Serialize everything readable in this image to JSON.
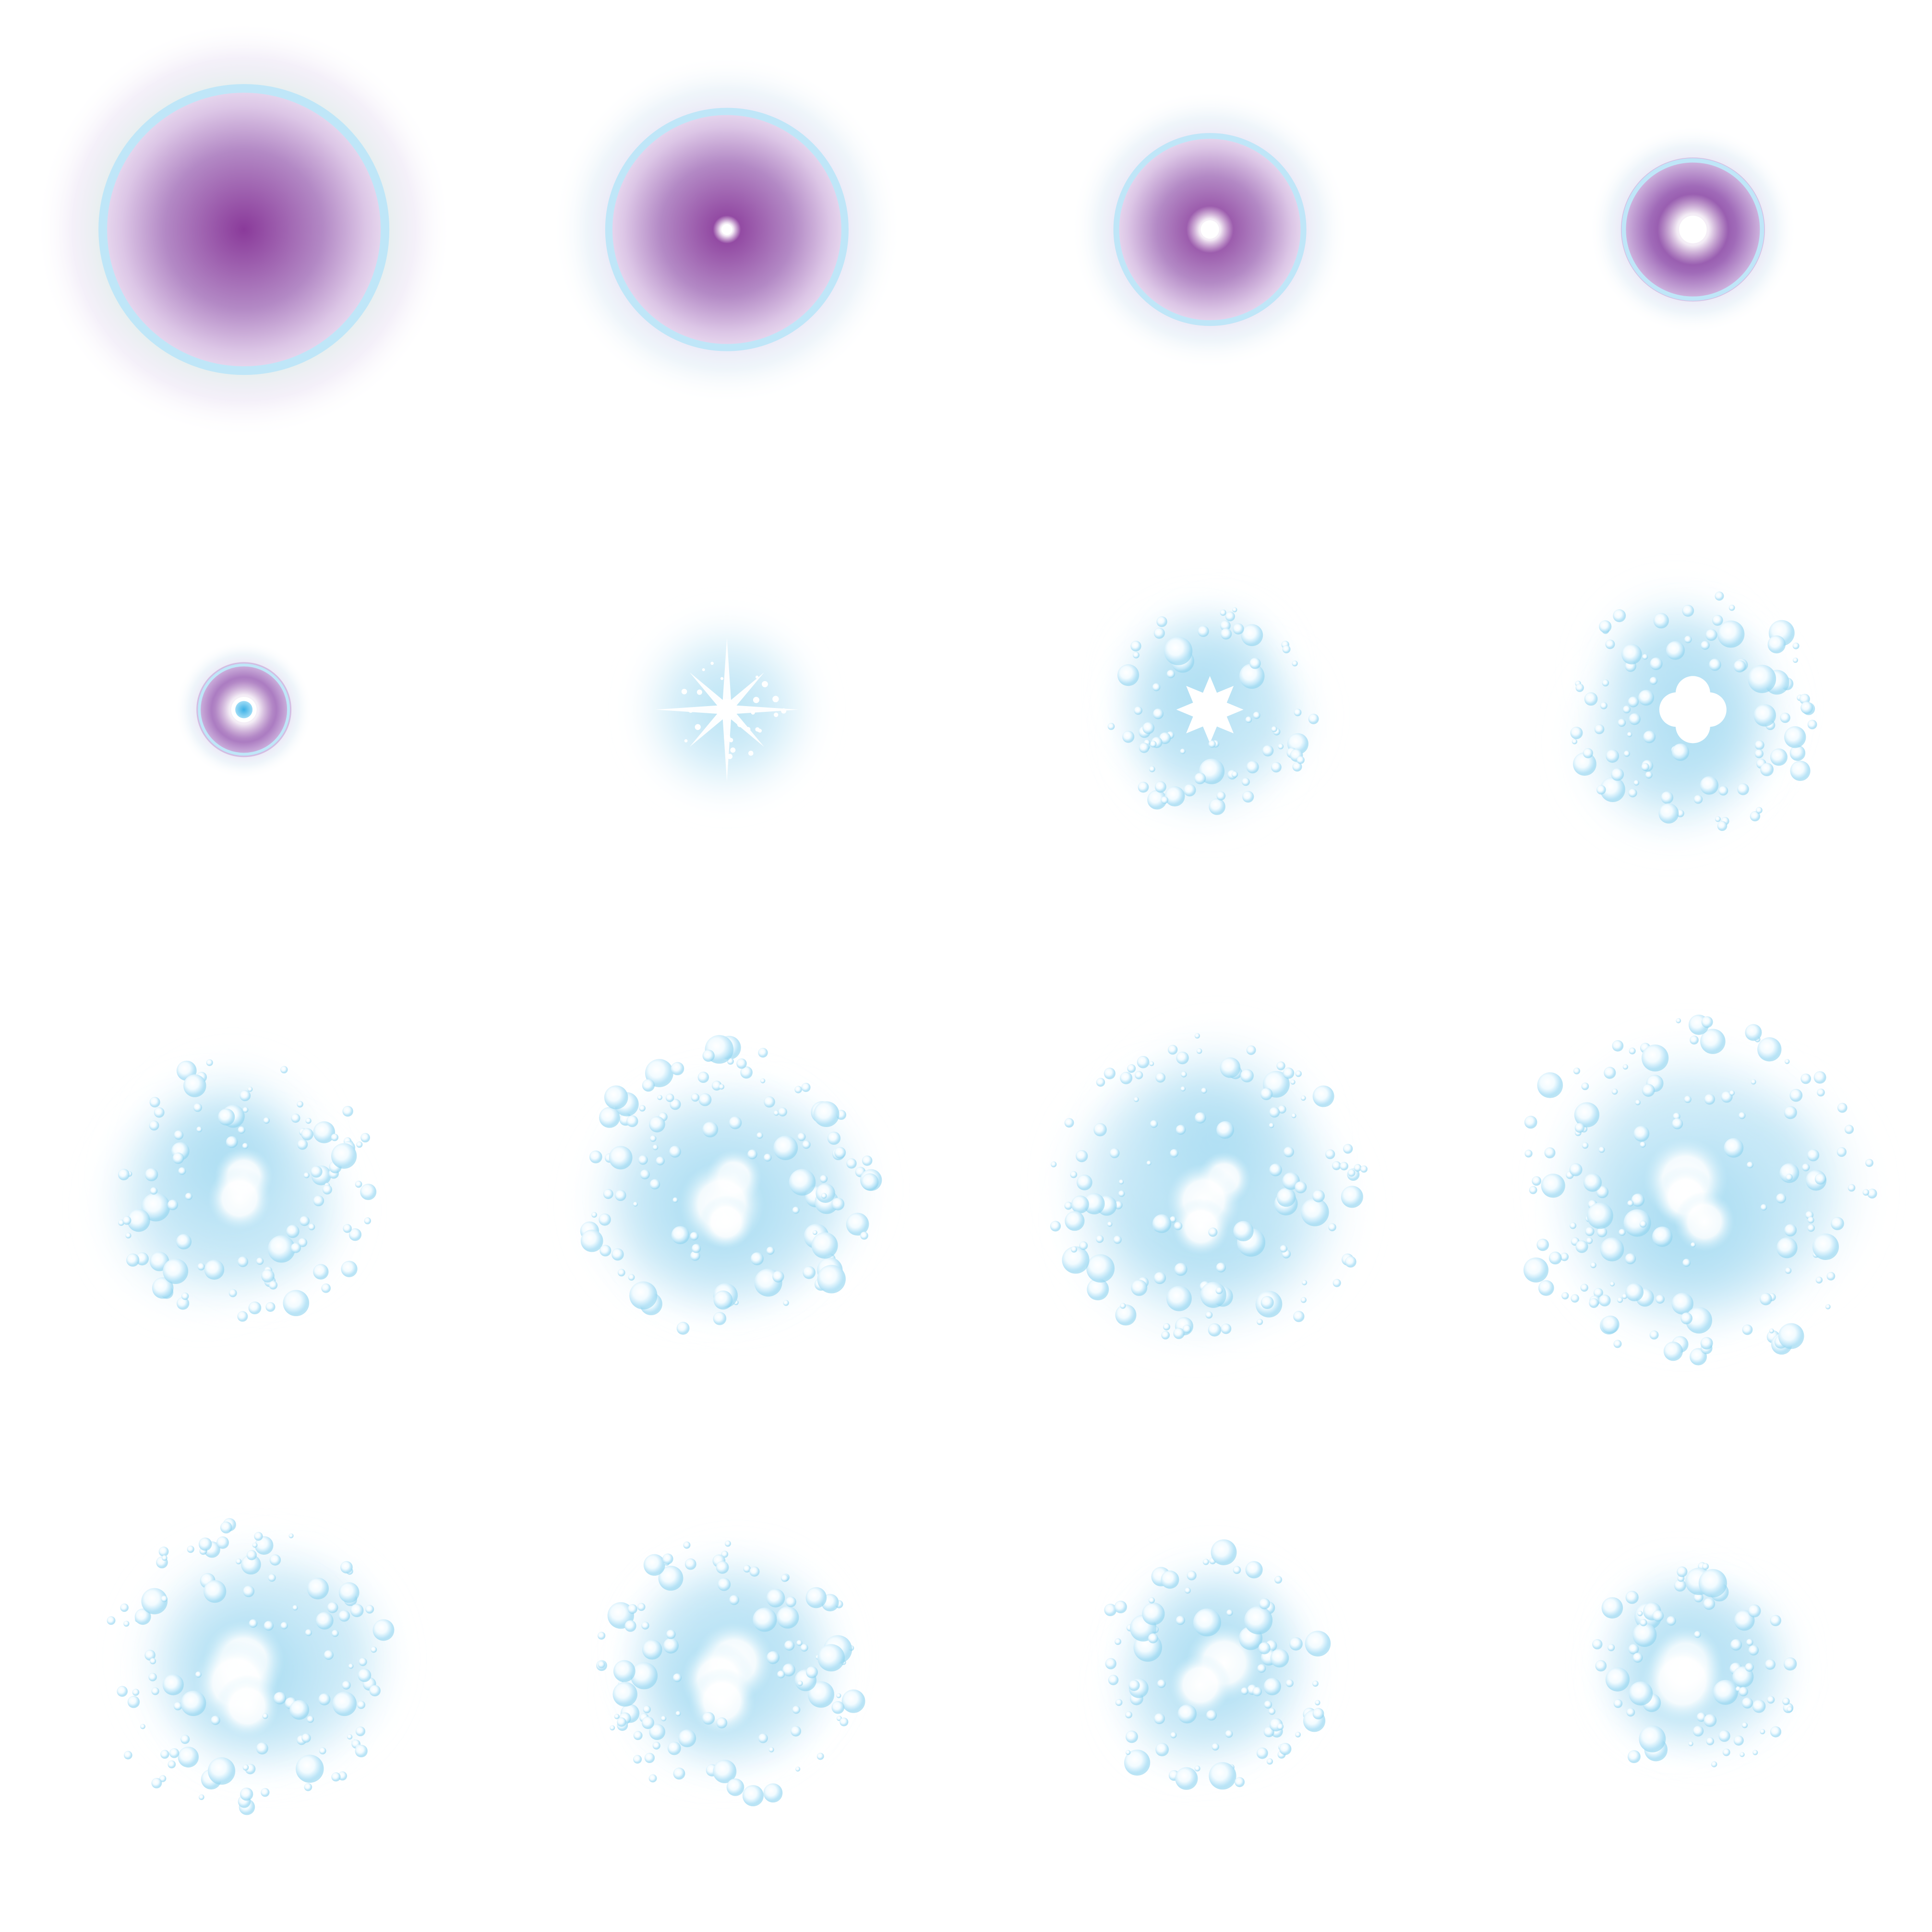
{
  "sheet": {
    "kind": "sprite-sheet",
    "columns": 4,
    "rows": 4,
    "frame_count": 16,
    "background": "#ffffff",
    "palette": {
      "purple_core": "#8a3a9a",
      "purple_mid": "#a26ab8",
      "lavender": "#c9a6d6",
      "cyan_ring": "#bfe6f8",
      "ice_blue": "#8fd3ee",
      "pale_blue": "#cfeefa",
      "mint_glow": "#bfe8d0",
      "highlight": "#ffffff"
    },
    "frames": [
      {
        "id": 1,
        "phase": "orb",
        "orb_size": 1.0,
        "core_glow": 0.0
      },
      {
        "id": 2,
        "phase": "orb",
        "orb_size": 0.84,
        "core_glow": 0.15
      },
      {
        "id": 3,
        "phase": "orb",
        "orb_size": 0.67,
        "core_glow": 0.35
      },
      {
        "id": 4,
        "phase": "orb",
        "orb_size": 0.5,
        "core_glow": 0.6
      },
      {
        "id": 5,
        "phase": "orb",
        "orb_size": 0.33,
        "core_glow": 0.9
      },
      {
        "id": 6,
        "phase": "star-burst",
        "orb_size": 0.0,
        "core_glow": 1.0
      },
      {
        "id": 7,
        "phase": "sparkle",
        "spread": 0.3
      },
      {
        "id": 8,
        "phase": "sparkle",
        "spread": 0.45
      },
      {
        "id": 9,
        "phase": "cluster",
        "spread": 0.5
      },
      {
        "id": 10,
        "phase": "cluster",
        "spread": 0.6
      },
      {
        "id": 11,
        "phase": "cluster",
        "spread": 0.7
      },
      {
        "id": 12,
        "phase": "cluster",
        "spread": 0.85
      },
      {
        "id": 13,
        "phase": "dissipate",
        "spread": 0.6
      },
      {
        "id": 14,
        "phase": "dissipate",
        "spread": 0.5
      },
      {
        "id": 15,
        "phase": "dissipate",
        "spread": 0.4
      },
      {
        "id": 16,
        "phase": "dissipate",
        "spread": 0.3
      }
    ]
  }
}
